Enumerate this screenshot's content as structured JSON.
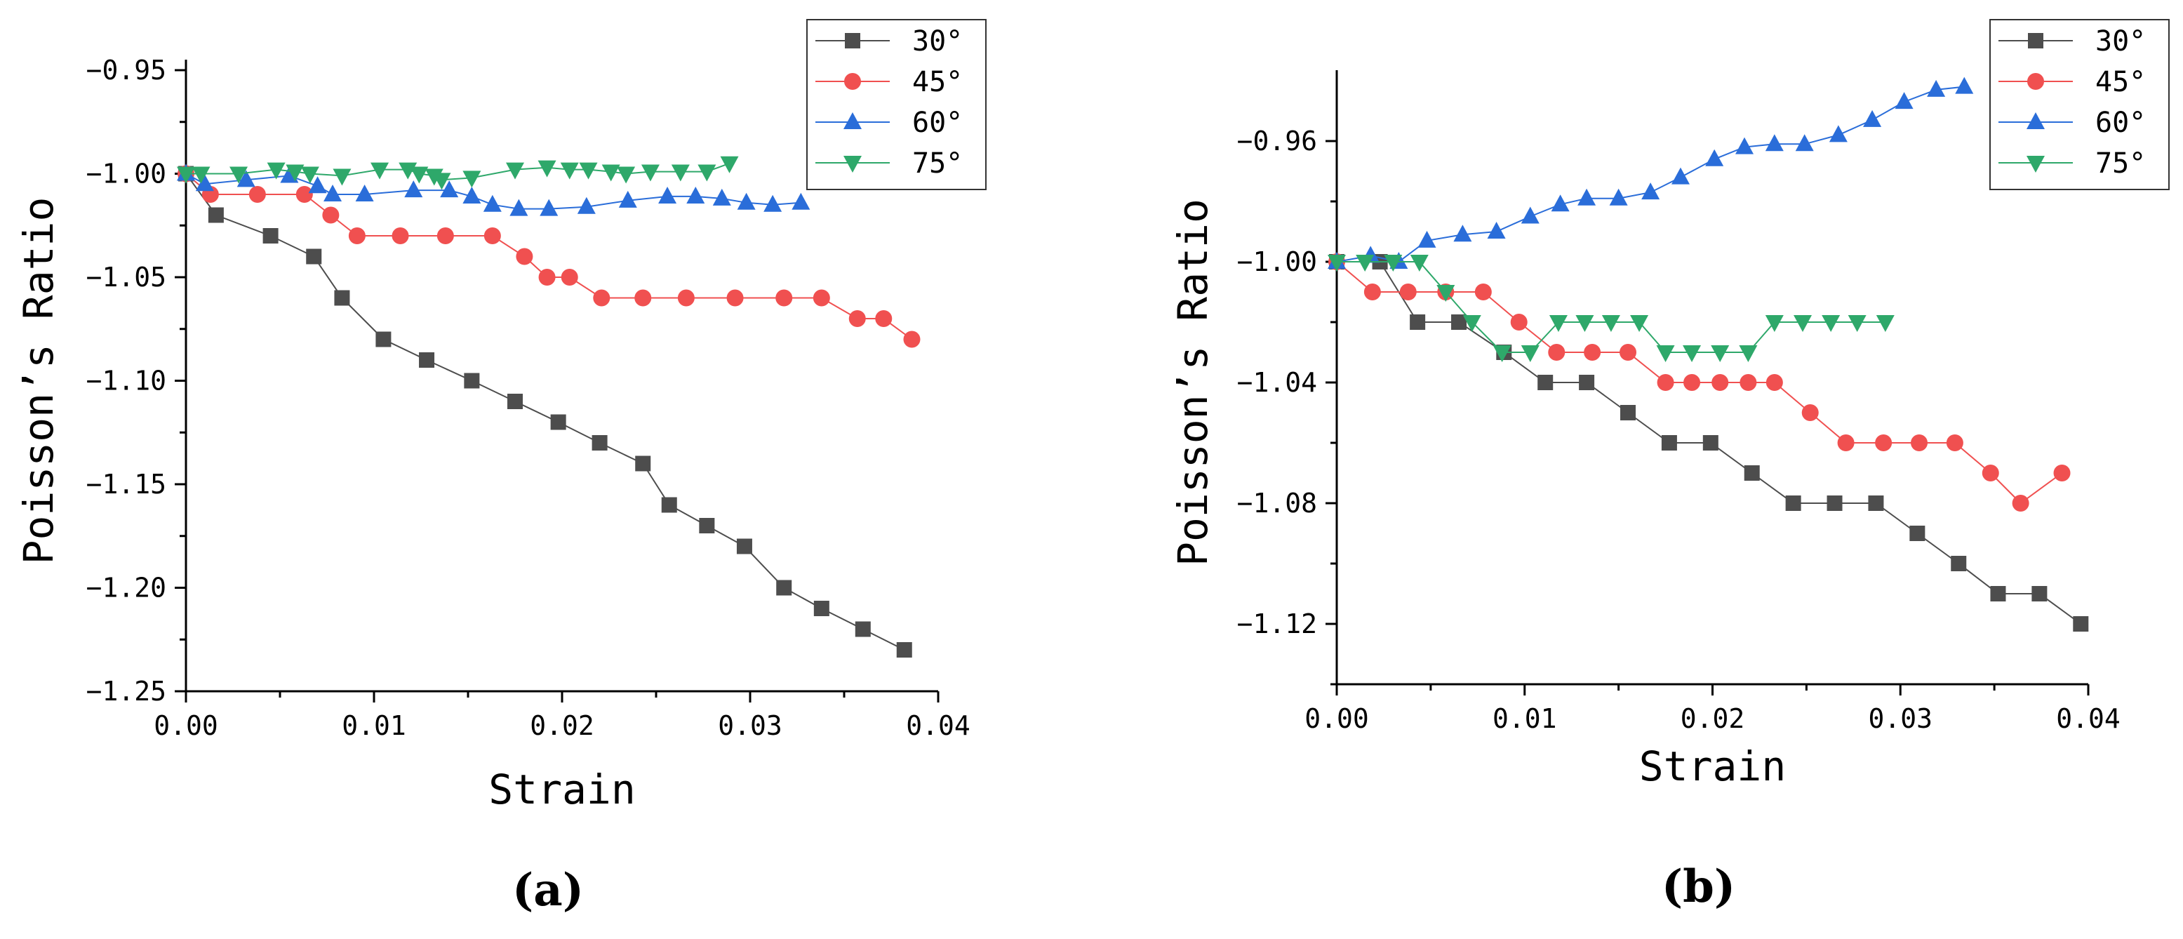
{
  "chart_data": [
    {
      "type": "line",
      "panel_label": "(a)",
      "xlabel": "Strain",
      "ylabel": "Poisson’s Ratio",
      "xlim": [
        0,
        0.04
      ],
      "ylim": [
        -1.25,
        -0.95
      ],
      "xticks": [
        0.0,
        0.01,
        0.02,
        0.03,
        0.04
      ],
      "xtick_labels": [
        "0.00",
        "0.01",
        "0.02",
        "0.03",
        "0.04"
      ],
      "yticks": [
        -0.95,
        -1.0,
        -1.05,
        -1.1,
        -1.15,
        -1.2,
        -1.25
      ],
      "ytick_labels": [
        "−0.95",
        "−1.00",
        "−1.05",
        "−1.10",
        "−1.15",
        "−1.20",
        "−1.25"
      ],
      "legend_position": "top-right",
      "series": [
        {
          "name": "30°",
          "color": "#4d4d4d",
          "marker": "square",
          "x": [
            0.0,
            0.0016,
            0.0045,
            0.0068,
            0.0083,
            0.0105,
            0.0128,
            0.0152,
            0.0175,
            0.0198,
            0.022,
            0.0243,
            0.0257,
            0.0277,
            0.0297,
            0.0318,
            0.0338,
            0.036,
            0.0382
          ],
          "y": [
            -1.0,
            -1.02,
            -1.03,
            -1.04,
            -1.06,
            -1.08,
            -1.09,
            -1.1,
            -1.11,
            -1.12,
            -1.13,
            -1.14,
            -1.16,
            -1.17,
            -1.18,
            -1.2,
            -1.21,
            -1.22,
            -1.23
          ]
        },
        {
          "name": "45°",
          "color": "#f05050",
          "marker": "circle",
          "x": [
            0.0,
            0.0013,
            0.0038,
            0.0063,
            0.0077,
            0.0091,
            0.0114,
            0.0138,
            0.0163,
            0.018,
            0.0192,
            0.0204,
            0.0221,
            0.0243,
            0.0266,
            0.0292,
            0.0318,
            0.0338,
            0.0357,
            0.0371,
            0.0386
          ],
          "y": [
            -1.0,
            -1.01,
            -1.01,
            -1.01,
            -1.02,
            -1.03,
            -1.03,
            -1.03,
            -1.03,
            -1.04,
            -1.05,
            -1.05,
            -1.06,
            -1.06,
            -1.06,
            -1.06,
            -1.06,
            -1.06,
            -1.07,
            -1.07,
            -1.08
          ]
        },
        {
          "name": "60°",
          "color": "#2a6dd9",
          "marker": "triangle-up",
          "x": [
            0.0,
            0.001,
            0.0032,
            0.0055,
            0.007,
            0.0078,
            0.0095,
            0.0121,
            0.014,
            0.0152,
            0.0163,
            0.0177,
            0.0193,
            0.0213,
            0.0235,
            0.0256,
            0.0271,
            0.0285,
            0.0298,
            0.0312,
            0.0327
          ],
          "y": [
            -1.0,
            -1.005,
            -1.003,
            -1.001,
            -1.006,
            -1.01,
            -1.01,
            -1.008,
            -1.008,
            -1.011,
            -1.015,
            -1.017,
            -1.017,
            -1.016,
            -1.013,
            -1.011,
            -1.011,
            -1.012,
            -1.014,
            -1.015,
            -1.014
          ]
        },
        {
          "name": "75°",
          "color": "#2ea86a",
          "marker": "triangle-down",
          "x": [
            0.0,
            0.0008,
            0.0028,
            0.0048,
            0.0058,
            0.0066,
            0.0083,
            0.0103,
            0.0118,
            0.0124,
            0.0132,
            0.0136,
            0.0152,
            0.0175,
            0.0192,
            0.0204,
            0.0214,
            0.0226,
            0.0234,
            0.0247,
            0.0263,
            0.0277,
            0.0289
          ],
          "y": [
            -1.0,
            -1.0,
            -1.0,
            -0.998,
            -0.999,
            -1.0,
            -1.001,
            -0.998,
            -0.998,
            -1.0,
            -1.001,
            -1.003,
            -1.002,
            -0.998,
            -0.997,
            -0.998,
            -0.998,
            -0.999,
            -1.0,
            -0.999,
            -0.999,
            -0.999,
            -0.995
          ]
        }
      ]
    },
    {
      "type": "line",
      "panel_label": "(b)",
      "xlabel": "Strain",
      "ylabel": "Poisson’s Ratio",
      "xlim": [
        0,
        0.04
      ],
      "ylim": [
        -1.14,
        -0.94
      ],
      "xticks": [
        0.0,
        0.01,
        0.02,
        0.03,
        0.04
      ],
      "xtick_labels": [
        "0.00",
        "0.01",
        "0.02",
        "0.03",
        "0.04"
      ],
      "yticks": [
        -0.96,
        -1.0,
        -1.04,
        -1.08,
        -1.12
      ],
      "ytick_labels": [
        "−0.96",
        "−1.00",
        "−1.04",
        "−1.08",
        "−1.12"
      ],
      "minor_yticks": [
        -0.98,
        -1.02,
        -1.06,
        -1.1,
        -1.14
      ],
      "legend_position": "top-right",
      "series": [
        {
          "name": "30°",
          "color": "#4d4d4d",
          "marker": "square",
          "x": [
            0.0,
            0.0023,
            0.0043,
            0.0065,
            0.0089,
            0.0111,
            0.0133,
            0.0155,
            0.0177,
            0.0199,
            0.0221,
            0.0243,
            0.0265,
            0.0287,
            0.0309,
            0.0331,
            0.0352,
            0.0374,
            0.0396
          ],
          "y": [
            -1.0,
            -1.0,
            -1.02,
            -1.02,
            -1.03,
            -1.04,
            -1.04,
            -1.05,
            -1.06,
            -1.06,
            -1.07,
            -1.08,
            -1.08,
            -1.08,
            -1.09,
            -1.1,
            -1.11,
            -1.11,
            -1.12
          ]
        },
        {
          "name": "45°",
          "color": "#f05050",
          "marker": "circle",
          "x": [
            0.0,
            0.0019,
            0.0038,
            0.0058,
            0.0078,
            0.0097,
            0.0117,
            0.0136,
            0.0155,
            0.0175,
            0.0189,
            0.0204,
            0.0219,
            0.0233,
            0.0252,
            0.0271,
            0.0291,
            0.031,
            0.0329,
            0.0348,
            0.0364,
            0.0386
          ],
          "y": [
            -1.0,
            -1.01,
            -1.01,
            -1.01,
            -1.01,
            -1.02,
            -1.03,
            -1.03,
            -1.03,
            -1.04,
            -1.04,
            -1.04,
            -1.04,
            -1.04,
            -1.05,
            -1.06,
            -1.06,
            -1.06,
            -1.06,
            -1.07,
            -1.08,
            -1.07
          ]
        },
        {
          "name": "60°",
          "color": "#2a6dd9",
          "marker": "triangle-up",
          "x": [
            0.0,
            0.0018,
            0.0033,
            0.0048,
            0.0067,
            0.0085,
            0.0103,
            0.0119,
            0.0133,
            0.015,
            0.0167,
            0.0183,
            0.0201,
            0.0217,
            0.0233,
            0.0249,
            0.0267,
            0.0285,
            0.0302,
            0.0319,
            0.0334
          ],
          "y": [
            -1.0,
            -0.998,
            -1.0,
            -0.993,
            -0.991,
            -0.99,
            -0.985,
            -0.981,
            -0.979,
            -0.979,
            -0.977,
            -0.972,
            -0.966,
            -0.962,
            -0.961,
            -0.961,
            -0.958,
            -0.953,
            -0.947,
            -0.943,
            -0.942
          ]
        },
        {
          "name": "75°",
          "color": "#2ea86a",
          "marker": "triangle-down",
          "x": [
            0.0,
            0.0015,
            0.003,
            0.0044,
            0.0058,
            0.0072,
            0.0088,
            0.0103,
            0.0118,
            0.0132,
            0.0146,
            0.0161,
            0.0175,
            0.0189,
            0.0204,
            0.0219,
            0.0233,
            0.0248,
            0.0263,
            0.0277,
            0.0292
          ],
          "y": [
            -1.0,
            -1.0,
            -1.0,
            -1.0,
            -1.01,
            -1.02,
            -1.03,
            -1.03,
            -1.02,
            -1.02,
            -1.02,
            -1.02,
            -1.03,
            -1.03,
            -1.03,
            -1.03,
            -1.02,
            -1.02,
            -1.02,
            -1.02,
            -1.02
          ]
        }
      ]
    }
  ]
}
